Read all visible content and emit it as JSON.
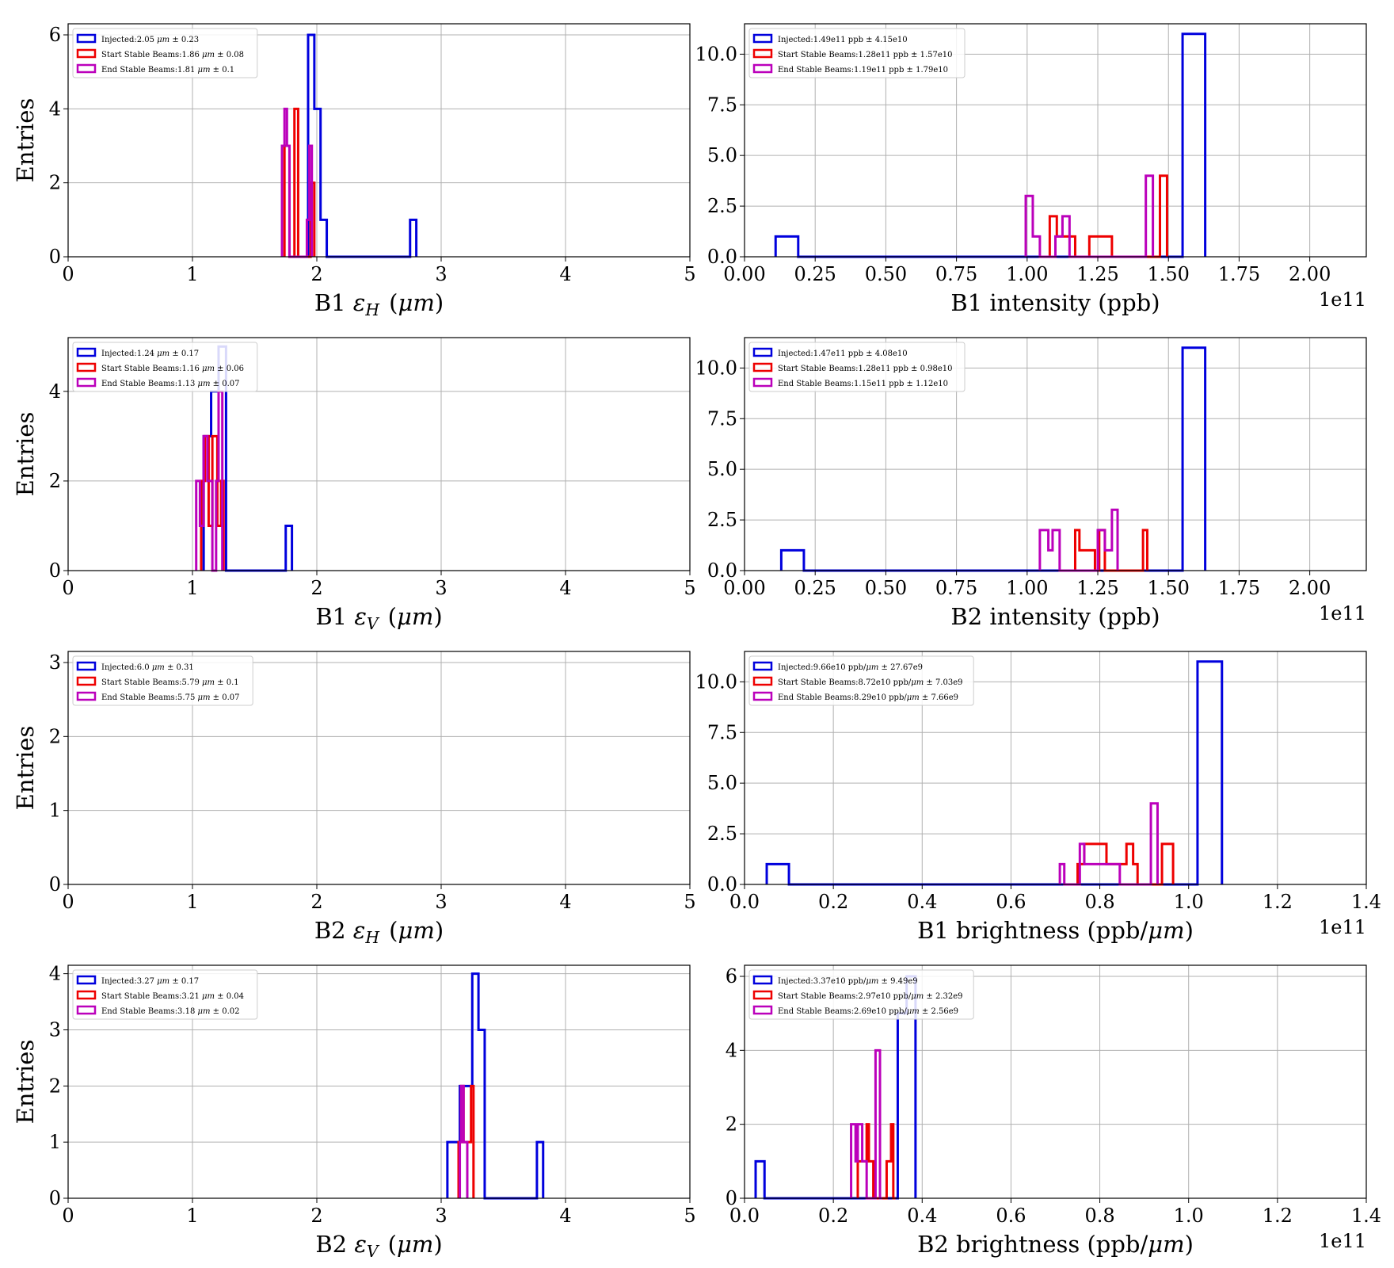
{
  "chart_data": [
    {
      "type": "histogram",
      "xlabel": "B1 ε_H (μm)",
      "ylabel": "Entries",
      "xlim": [
        0,
        5
      ],
      "ylim": [
        0,
        6.3
      ],
      "xticks": [
        0,
        1,
        2,
        3,
        4,
        5
      ],
      "xtick_labels": [
        "0",
        "1",
        "2",
        "3",
        "4",
        "5"
      ],
      "yticks": [
        0,
        2,
        4,
        6
      ],
      "ytick_labels": [
        "0",
        "2",
        "4",
        "6"
      ],
      "offset": "",
      "grid": true,
      "legend_position": "top-left",
      "series": [
        {
          "name": "Injected:2.05 μm ± 0.23",
          "color": "#0000dd",
          "x": [
            1.93,
            1.98,
            2.03,
            2.08,
            2.75,
            2.8
          ],
          "y": [
            6,
            4,
            1,
            0,
            1,
            0
          ]
        },
        {
          "name": "Start Stable Beams:1.86 μm ± 0.08",
          "color": "#ee0000",
          "x": [
            1.74,
            1.78,
            1.82,
            1.85,
            1.95,
            1.98
          ],
          "y": [
            3,
            0,
            4,
            0,
            2,
            0
          ]
        },
        {
          "name": "End Stable Beams:1.81 μm ± 0.1",
          "color": "#bb00bb",
          "x": [
            1.72,
            1.74,
            1.76,
            1.78,
            1.92,
            1.94,
            1.96
          ],
          "y": [
            3,
            4,
            3,
            0,
            1,
            3,
            0
          ]
        }
      ]
    },
    {
      "type": "histogram",
      "xlabel": "B1 intensity (ppb)",
      "ylabel": "",
      "xlim": [
        0,
        2.2
      ],
      "ylim": [
        0,
        11.5
      ],
      "xticks": [
        0,
        0.25,
        0.5,
        0.75,
        1.0,
        1.25,
        1.5,
        1.75,
        2.0
      ],
      "xtick_labels": [
        "0.00",
        "0.25",
        "0.50",
        "0.75",
        "1.00",
        "1.25",
        "1.50",
        "1.75",
        "2.00"
      ],
      "yticks": [
        0,
        2.5,
        5.0,
        7.5,
        10.0
      ],
      "ytick_labels": [
        "0.0",
        "2.5",
        "5.0",
        "7.5",
        "10.0"
      ],
      "offset": "1e11",
      "grid": true,
      "legend_position": "top-left",
      "series": [
        {
          "name": "Injected:1.49e11 ppb ± 4.15e10",
          "color": "#0000dd",
          "x": [
            0.11,
            0.19,
            1.55,
            1.63
          ],
          "y": [
            1,
            0,
            11,
            0
          ]
        },
        {
          "name": "Start Stable Beams:1.28e11 ppb ± 1.57e10",
          "color": "#ee0000",
          "x": [
            1.08,
            1.105,
            1.13,
            1.17,
            1.22,
            1.3,
            1.47,
            1.495
          ],
          "y": [
            2,
            1,
            1,
            0,
            1,
            0,
            4,
            0
          ]
        },
        {
          "name": "End Stable Beams:1.19e11 ppb ± 1.79e10",
          "color": "#bb00bb",
          "x": [
            0.995,
            1.02,
            1.045,
            1.1,
            1.125,
            1.15,
            1.42,
            1.445
          ],
          "y": [
            3,
            1,
            0,
            1,
            2,
            0,
            4,
            0
          ]
        }
      ]
    },
    {
      "type": "histogram",
      "xlabel": "B1 ε_V (μm)",
      "ylabel": "Entries",
      "xlim": [
        0,
        5
      ],
      "ylim": [
        0,
        5.2
      ],
      "xticks": [
        0,
        1,
        2,
        3,
        4,
        5
      ],
      "xtick_labels": [
        "0",
        "1",
        "2",
        "3",
        "4",
        "5"
      ],
      "yticks": [
        0,
        2,
        4
      ],
      "ytick_labels": [
        "0",
        "2",
        "4"
      ],
      "offset": "",
      "grid": true,
      "legend_position": "top-left",
      "series": [
        {
          "name": "Injected:1.24 μm ± 0.17",
          "color": "#0000dd",
          "x": [
            1.09,
            1.15,
            1.21,
            1.27,
            1.75,
            1.8
          ],
          "y": [
            3,
            4,
            5,
            0,
            1,
            0
          ]
        },
        {
          "name": "Start Stable Beams:1.16 μm ± 0.06",
          "color": "#ee0000",
          "x": [
            1.07,
            1.1,
            1.13,
            1.16,
            1.2,
            1.23,
            1.25
          ],
          "y": [
            2,
            3,
            1,
            3,
            1,
            2,
            0
          ]
        },
        {
          "name": "End Stable Beams:1.13 μm ± 0.07",
          "color": "#bb00bb",
          "x": [
            1.03,
            1.06,
            1.09,
            1.12,
            1.16,
            1.19,
            1.21,
            1.24
          ],
          "y": [
            2,
            1,
            3,
            2,
            0,
            2,
            4,
            0
          ]
        }
      ]
    },
    {
      "type": "histogram",
      "xlabel": "B2 intensity (ppb)",
      "ylabel": "",
      "xlim": [
        0,
        2.2
      ],
      "ylim": [
        0,
        11.5
      ],
      "xticks": [
        0,
        0.25,
        0.5,
        0.75,
        1.0,
        1.25,
        1.5,
        1.75,
        2.0
      ],
      "xtick_labels": [
        "0.00",
        "0.25",
        "0.50",
        "0.75",
        "1.00",
        "1.25",
        "1.50",
        "1.75",
        "2.00"
      ],
      "yticks": [
        0,
        2.5,
        5.0,
        7.5,
        10.0
      ],
      "ytick_labels": [
        "0.0",
        "2.5",
        "5.0",
        "7.5",
        "10.0"
      ],
      "offset": "1e11",
      "grid": true,
      "legend_position": "top-left",
      "series": [
        {
          "name": "Injected:1.47e11 ppb ± 4.08e10",
          "color": "#0000dd",
          "x": [
            0.13,
            0.21,
            1.55,
            1.63
          ],
          "y": [
            1,
            0,
            11,
            0
          ]
        },
        {
          "name": "Start Stable Beams:1.28e11 ppb ± 0.98e10",
          "color": "#ee0000",
          "x": [
            1.17,
            1.185,
            1.205,
            1.24,
            1.255,
            1.275,
            1.41,
            1.425
          ],
          "y": [
            2,
            1,
            1,
            0,
            2,
            0,
            2,
            0
          ]
        },
        {
          "name": "End Stable Beams:1.15e11 ppb ± 1.12e10",
          "color": "#bb00bb",
          "x": [
            1.045,
            1.075,
            1.09,
            1.115,
            1.25,
            1.275,
            1.3,
            1.32
          ],
          "y": [
            2,
            1,
            2,
            0,
            2,
            1,
            3,
            0
          ]
        }
      ]
    },
    {
      "type": "histogram",
      "xlabel": "B2 ε_H (μm)",
      "ylabel": "Entries",
      "xlim": [
        0,
        5
      ],
      "ylim": [
        0,
        3.15
      ],
      "xticks": [
        0,
        1,
        2,
        3,
        4,
        5
      ],
      "xtick_labels": [
        "0",
        "1",
        "2",
        "3",
        "4",
        "5"
      ],
      "yticks": [
        0,
        1,
        2,
        3
      ],
      "ytick_labels": [
        "0",
        "1",
        "2",
        "3"
      ],
      "offset": "",
      "grid": true,
      "legend_position": "top-left",
      "series": [
        {
          "name": "Injected:6.0 μm ± 0.31",
          "color": "#0000dd",
          "x": [],
          "y": []
        },
        {
          "name": "Start Stable Beams:5.79 μm ± 0.1",
          "color": "#ee0000",
          "x": [],
          "y": []
        },
        {
          "name": "End Stable Beams:5.75 μm ± 0.07",
          "color": "#bb00bb",
          "x": [],
          "y": []
        }
      ]
    },
    {
      "type": "histogram",
      "xlabel": "B1 brightness (ppb/μm)",
      "ylabel": "",
      "xlim": [
        0,
        1.4
      ],
      "ylim": [
        0,
        11.5
      ],
      "xticks": [
        0,
        0.2,
        0.4,
        0.6,
        0.8,
        1.0,
        1.2,
        1.4
      ],
      "xtick_labels": [
        "0.0",
        "0.2",
        "0.4",
        "0.6",
        "0.8",
        "1.0",
        "1.2",
        "1.4"
      ],
      "yticks": [
        0,
        2.5,
        5.0,
        7.5,
        10.0
      ],
      "ytick_labels": [
        "0.0",
        "2.5",
        "5.0",
        "7.5",
        "10.0"
      ],
      "offset": "1e11",
      "grid": true,
      "legend_position": "top-left",
      "series": [
        {
          "name": "Injected:9.66e10 ppb/μm ± 27.67e9",
          "color": "#0000dd",
          "x": [
            0.05,
            0.1,
            1.02,
            1.075
          ],
          "y": [
            1,
            0,
            11,
            0
          ]
        },
        {
          "name": "Start Stable Beams:8.72e10 ppb/μm ± 7.03e9",
          "color": "#ee0000",
          "x": [
            0.75,
            0.765,
            0.815,
            0.835,
            0.86,
            0.875,
            0.885,
            0.94,
            0.965
          ],
          "y": [
            1,
            2,
            1,
            1,
            2,
            1,
            0,
            2,
            0
          ]
        },
        {
          "name": "End Stable Beams:8.29e10 ppb/μm ± 7.66e9",
          "color": "#bb00bb",
          "x": [
            0.71,
            0.72,
            0.755,
            0.765,
            0.78,
            0.845,
            0.915,
            0.93
          ],
          "y": [
            1,
            0,
            2,
            1,
            1,
            0,
            4,
            0
          ]
        }
      ]
    },
    {
      "type": "histogram",
      "xlabel": "B2 ε_V (μm)",
      "ylabel": "Entries",
      "xlim": [
        0,
        5
      ],
      "ylim": [
        0,
        4.15
      ],
      "xticks": [
        0,
        1,
        2,
        3,
        4,
        5
      ],
      "xtick_labels": [
        "0",
        "1",
        "2",
        "3",
        "4",
        "5"
      ],
      "yticks": [
        0,
        1,
        2,
        3,
        4
      ],
      "ytick_labels": [
        "0",
        "1",
        "2",
        "3",
        "4"
      ],
      "offset": "",
      "grid": true,
      "legend_position": "top-left",
      "series": [
        {
          "name": "Injected:3.27 μm ± 0.17",
          "color": "#0000dd",
          "x": [
            3.05,
            3.15,
            3.25,
            3.3,
            3.35,
            3.77,
            3.82
          ],
          "y": [
            1,
            2,
            4,
            3,
            0,
            1,
            0
          ]
        },
        {
          "name": "Start Stable Beams:3.21 μm ± 0.04",
          "color": "#ee0000",
          "x": [
            3.14,
            3.16,
            3.18,
            3.2,
            3.22,
            3.24,
            3.26
          ],
          "y": [
            1,
            2,
            1,
            1,
            1,
            2,
            0
          ]
        },
        {
          "name": "End Stable Beams:3.18 μm ± 0.02",
          "color": "#bb00bb",
          "x": [
            3.15,
            3.16,
            3.17,
            3.18,
            3.19,
            3.2,
            3.21
          ],
          "y": [
            1,
            2,
            2,
            1,
            1,
            1,
            0
          ]
        }
      ]
    },
    {
      "type": "histogram",
      "xlabel": "B2 brightness (ppb/μm)",
      "ylabel": "",
      "xlim": [
        0,
        1.4
      ],
      "ylim": [
        0,
        6.3
      ],
      "xticks": [
        0,
        0.2,
        0.4,
        0.6,
        0.8,
        1.0,
        1.2,
        1.4
      ],
      "xtick_labels": [
        "0.0",
        "0.2",
        "0.4",
        "0.6",
        "0.8",
        "1.0",
        "1.2",
        "1.4"
      ],
      "yticks": [
        0,
        2,
        4,
        6
      ],
      "ytick_labels": [
        "0",
        "2",
        "4",
        "6"
      ],
      "offset": "1e11",
      "grid": true,
      "legend_position": "top-left",
      "series": [
        {
          "name": "Injected:3.37e10 ppb/μm ± 9.49e9",
          "color": "#0000dd",
          "x": [
            0.025,
            0.045,
            0.345,
            0.365,
            0.385
          ],
          "y": [
            1,
            0,
            5,
            6,
            0
          ]
        },
        {
          "name": "Start Stable Beams:2.97e10 ppb/μm ± 2.32e9",
          "color": "#ee0000",
          "x": [
            0.255,
            0.265,
            0.275,
            0.28,
            0.29,
            0.32,
            0.33,
            0.335,
            0.34
          ],
          "y": [
            1,
            1,
            2,
            1,
            0,
            1,
            2,
            0,
            0
          ]
        },
        {
          "name": "End Stable Beams:2.69e10 ppb/μm ± 2.56e9",
          "color": "#bb00bb",
          "x": [
            0.24,
            0.25,
            0.255,
            0.265,
            0.275,
            0.295,
            0.305,
            0.31
          ],
          "y": [
            2,
            1,
            2,
            1,
            0,
            4,
            0,
            0
          ]
        }
      ]
    }
  ]
}
